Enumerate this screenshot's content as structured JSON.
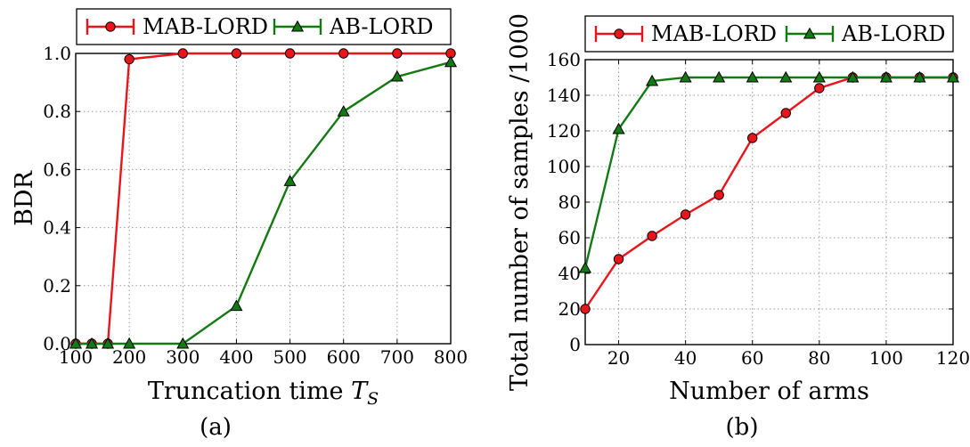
{
  "chart_data": [
    {
      "type": "line",
      "caption": "(a)",
      "xlabel": "Truncation time",
      "xlabel_symbol": "T",
      "xlabel_subscript": "S",
      "ylabel": "BDR",
      "xlim": [
        100,
        800
      ],
      "ylim": [
        0,
        1.0
      ],
      "xticks": [
        "100",
        "200",
        "300",
        "400",
        "500",
        "600",
        "700",
        "800"
      ],
      "yticks": [
        "0.0",
        "0.2",
        "0.4",
        "0.6",
        "0.8",
        "1.0"
      ],
      "grid": true,
      "legend_position": "top",
      "series": [
        {
          "name": "MAB-LORD",
          "color": "#e8151b",
          "marker": "circle",
          "x": [
            100,
            130,
            160,
            200,
            300,
            400,
            500,
            600,
            700,
            800
          ],
          "y": [
            0.0,
            0.0,
            0.0,
            0.98,
            1.0,
            1.0,
            1.0,
            1.0,
            1.0,
            1.0
          ]
        },
        {
          "name": "AB-LORD",
          "color": "#137a13",
          "marker": "triangle",
          "x": [
            100,
            130,
            160,
            200,
            300,
            400,
            500,
            600,
            700,
            800
          ],
          "y": [
            0.0,
            0.0,
            0.0,
            0.0,
            0.0,
            0.13,
            0.56,
            0.8,
            0.92,
            0.97
          ]
        }
      ]
    },
    {
      "type": "line",
      "caption": "(b)",
      "xlabel": "Number of arms",
      "ylabel": "Total number of samples /1000",
      "xlim": [
        10,
        120
      ],
      "ylim": [
        0,
        160
      ],
      "xticks": [
        "20",
        "40",
        "60",
        "80",
        "100",
        "120"
      ],
      "yticks": [
        "0",
        "20",
        "40",
        "60",
        "80",
        "100",
        "120",
        "140",
        "160"
      ],
      "grid": true,
      "legend_position": "top",
      "series": [
        {
          "name": "MAB-LORD",
          "color": "#e8151b",
          "marker": "circle",
          "x": [
            10,
            20,
            30,
            40,
            50,
            60,
            70,
            80,
            90,
            100,
            110,
            120
          ],
          "y": [
            20,
            48,
            61,
            73,
            84,
            116,
            130,
            144,
            150,
            150,
            150,
            150
          ]
        },
        {
          "name": "AB-LORD",
          "color": "#137a13",
          "marker": "triangle",
          "x": [
            10,
            20,
            30,
            40,
            50,
            60,
            70,
            80,
            90,
            100,
            110,
            120
          ],
          "y": [
            43,
            121,
            148,
            150,
            150,
            150,
            150,
            150,
            150,
            150,
            150,
            150
          ]
        }
      ]
    }
  ]
}
